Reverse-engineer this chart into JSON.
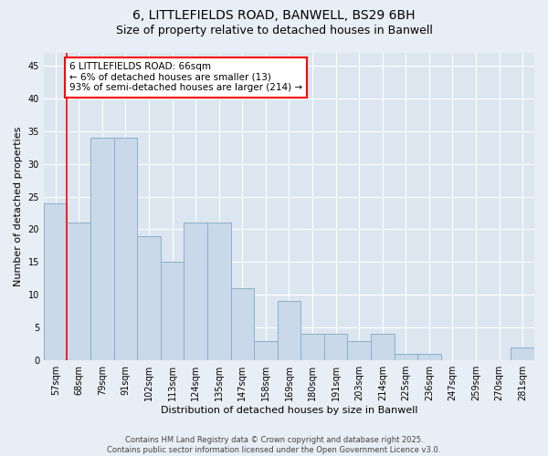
{
  "title_line1": "6, LITTLEFIELDS ROAD, BANWELL, BS29 6BH",
  "title_line2": "Size of property relative to detached houses in Banwell",
  "xlabel": "Distribution of detached houses by size in Banwell",
  "ylabel": "Number of detached properties",
  "categories": [
    "57sqm",
    "68sqm",
    "79sqm",
    "91sqm",
    "102sqm",
    "113sqm",
    "124sqm",
    "135sqm",
    "147sqm",
    "158sqm",
    "169sqm",
    "180sqm",
    "191sqm",
    "203sqm",
    "214sqm",
    "225sqm",
    "236sqm",
    "247sqm",
    "259sqm",
    "270sqm",
    "281sqm"
  ],
  "values": [
    24,
    21,
    34,
    34,
    19,
    15,
    21,
    21,
    11,
    3,
    9,
    4,
    4,
    3,
    4,
    1,
    1,
    0,
    0,
    0,
    2
  ],
  "bar_color": "#c9d9ea",
  "bar_edge_color": "#8aafc8",
  "ylim": [
    0,
    47
  ],
  "yticks": [
    0,
    5,
    10,
    15,
    20,
    25,
    30,
    35,
    40,
    45
  ],
  "annotation_box_text": "6 LITTLEFIELDS ROAD: 66sqm\n← 6% of detached houses are smaller (13)\n93% of semi-detached houses are larger (214) →",
  "annotation_box_color": "white",
  "annotation_box_edge_color": "red",
  "vline_color": "red",
  "background_color": "#e8eef5",
  "plot_bg_color": "#dce6f0",
  "grid_color": "white",
  "footer": "Contains HM Land Registry data © Crown copyright and database right 2025.\nContains public sector information licensed under the Open Government Licence v3.0.",
  "title_fontsize": 10,
  "subtitle_fontsize": 9,
  "tick_fontsize": 7,
  "label_fontsize": 8,
  "annotation_fontsize": 7.5,
  "footer_fontsize": 6
}
